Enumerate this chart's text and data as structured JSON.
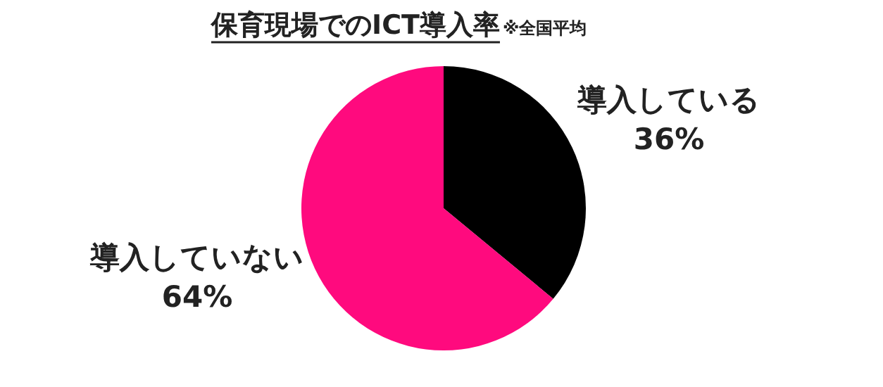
{
  "chart_data": {
    "type": "pie",
    "title": "保育現場でのICT導入率",
    "subtitle": "※全国平均",
    "categories": [
      "導入している",
      "導入していない"
    ],
    "values": [
      36,
      64
    ],
    "value_labels": [
      "36%",
      "64%"
    ],
    "colors": [
      "#000000",
      "#ff0a7e"
    ],
    "legend": false
  }
}
